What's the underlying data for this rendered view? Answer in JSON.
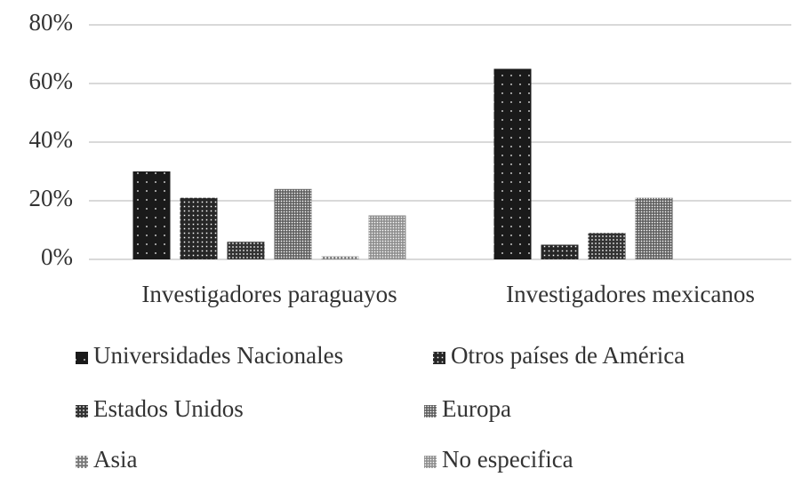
{
  "chart_data": {
    "type": "bar",
    "categories": [
      "Investigadores paraguayos",
      "Investigadores mexicanos"
    ],
    "series": [
      {
        "name": "Universidades Nacionales",
        "color": "#1a1a1a",
        "values": [
          30,
          65
        ]
      },
      {
        "name": "Otros países de América",
        "color": "#262626",
        "values": [
          21,
          5
        ]
      },
      {
        "name": "Estados Unidos",
        "color": "#333333",
        "values": [
          6,
          9
        ]
      },
      {
        "name": "Europa",
        "color": "#5a5a5a",
        "values": [
          24,
          21
        ]
      },
      {
        "name": "Asia",
        "color": "#777777",
        "values": [
          1,
          0
        ]
      },
      {
        "name": "No especifica",
        "color": "#8a8a8a",
        "values": [
          15,
          0
        ]
      }
    ],
    "ylim": [
      0,
      80
    ],
    "yticks": [
      {
        "value": 0,
        "label": "0%"
      },
      {
        "value": 20,
        "label": "20%"
      },
      {
        "value": 40,
        "label": "40%"
      },
      {
        "value": 60,
        "label": "60%"
      },
      {
        "value": 80,
        "label": "80%"
      }
    ],
    "grid": true,
    "legend": "bottom"
  }
}
